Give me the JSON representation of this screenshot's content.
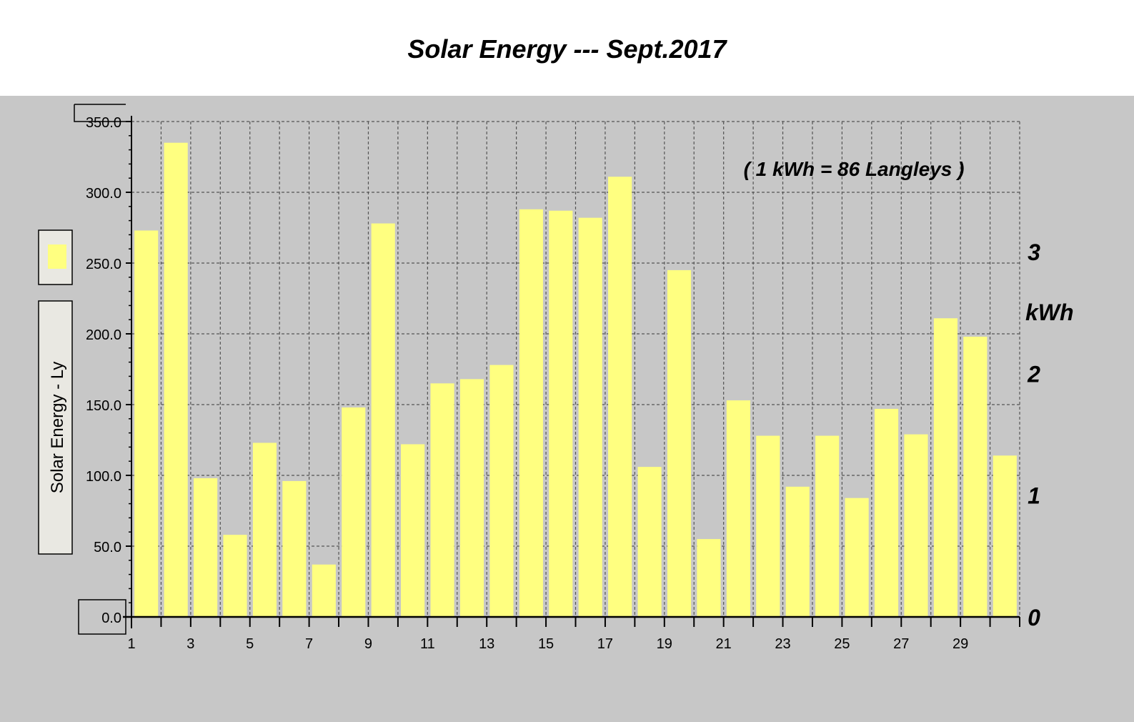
{
  "title": "Solar Energy --- Sept.2017",
  "chart_data": {
    "type": "bar",
    "title": "Solar Energy --- Sept.2017",
    "ylabel": "Solar Energy - Ly",
    "y2label": "kWh",
    "annotation": "( 1 kWh = 86 Langleys )",
    "ylim": [
      0,
      350
    ],
    "yticks": [
      "0.0",
      "50.0",
      "100.0",
      "150.0",
      "200.0",
      "250.0",
      "300.0",
      "350.0"
    ],
    "y2ticks": [
      "0",
      "1",
      "2",
      "3"
    ],
    "xticks": [
      "1",
      "3",
      "5",
      "7",
      "9",
      "11",
      "13",
      "15",
      "17",
      "19",
      "21",
      "23",
      "25",
      "27",
      "29"
    ],
    "categories": [
      1,
      2,
      3,
      4,
      5,
      6,
      7,
      8,
      9,
      10,
      11,
      12,
      13,
      14,
      15,
      16,
      17,
      18,
      19,
      20,
      21,
      22,
      23,
      24,
      25,
      26,
      27,
      28,
      29,
      30
    ],
    "values": [
      273,
      335,
      98,
      58,
      123,
      96,
      37,
      148,
      278,
      122,
      165,
      168,
      178,
      288,
      287,
      282,
      311,
      106,
      245,
      55,
      153,
      128,
      92,
      128,
      84,
      147,
      129,
      211,
      198,
      114
    ],
    "bar_color": "#ffff80",
    "grid": true,
    "legend": "left"
  }
}
